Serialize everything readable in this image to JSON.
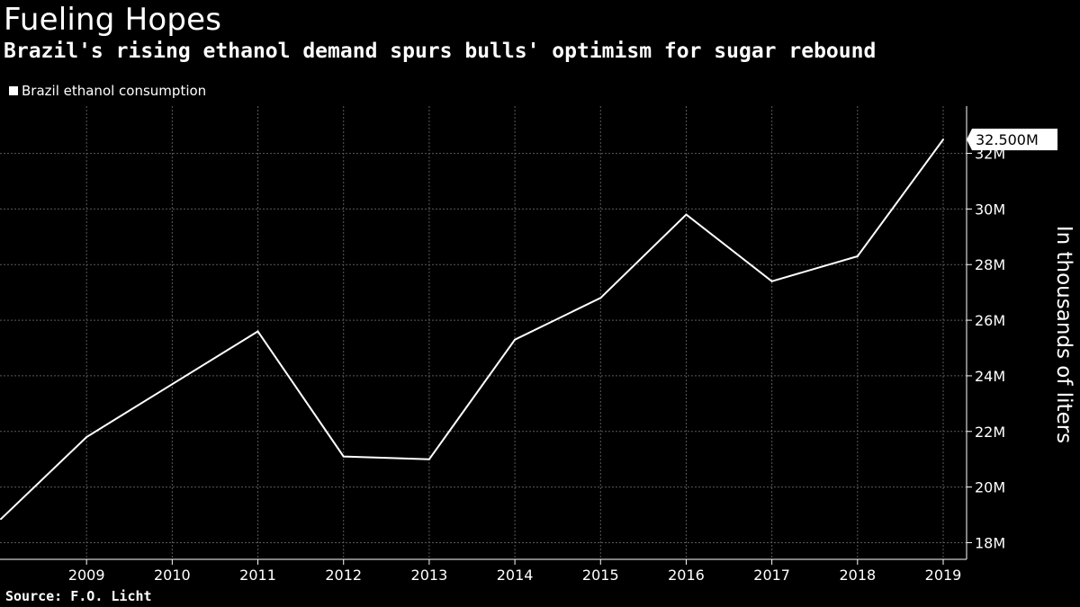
{
  "title": "Fueling Hopes",
  "subtitle": "Brazil's rising ethanol demand spurs bulls' optimism for sugar rebound",
  "source": "Source: F.O. Licht",
  "colors": {
    "background": "#000000",
    "line": "#ffffff",
    "grid": "#5a5a5a",
    "text": "#ffffff",
    "callout_bg": "#ffffff",
    "callout_text": "#000000"
  },
  "chart_data": {
    "type": "line",
    "x": [
      2008,
      2009,
      2010,
      2011,
      2012,
      2013,
      2014,
      2015,
      2016,
      2017,
      2018,
      2019
    ],
    "x_tick_labels": [
      "2009",
      "2010",
      "2011",
      "2012",
      "2013",
      "2014",
      "2015",
      "2016",
      "2017",
      "2018",
      "2019"
    ],
    "series": [
      {
        "name": "Brazil ethanol consumption",
        "values": [
          18.85,
          21.8,
          23.7,
          25.6,
          21.1,
          21.0,
          25.3,
          26.8,
          29.8,
          27.4,
          28.3,
          32.5
        ]
      }
    ],
    "ylabel": "In thousands of liters",
    "y_ticks": [
      18,
      20,
      22,
      24,
      26,
      28,
      30,
      32
    ],
    "y_tick_labels": [
      "18M",
      "20M",
      "22M",
      "24M",
      "26M",
      "28M",
      "30M",
      "32M"
    ],
    "ylim": [
      17.4,
      33.7
    ],
    "last_value_label": "32.500M",
    "legend_position": "top-left",
    "grid": true,
    "y_axis_side": "right"
  }
}
